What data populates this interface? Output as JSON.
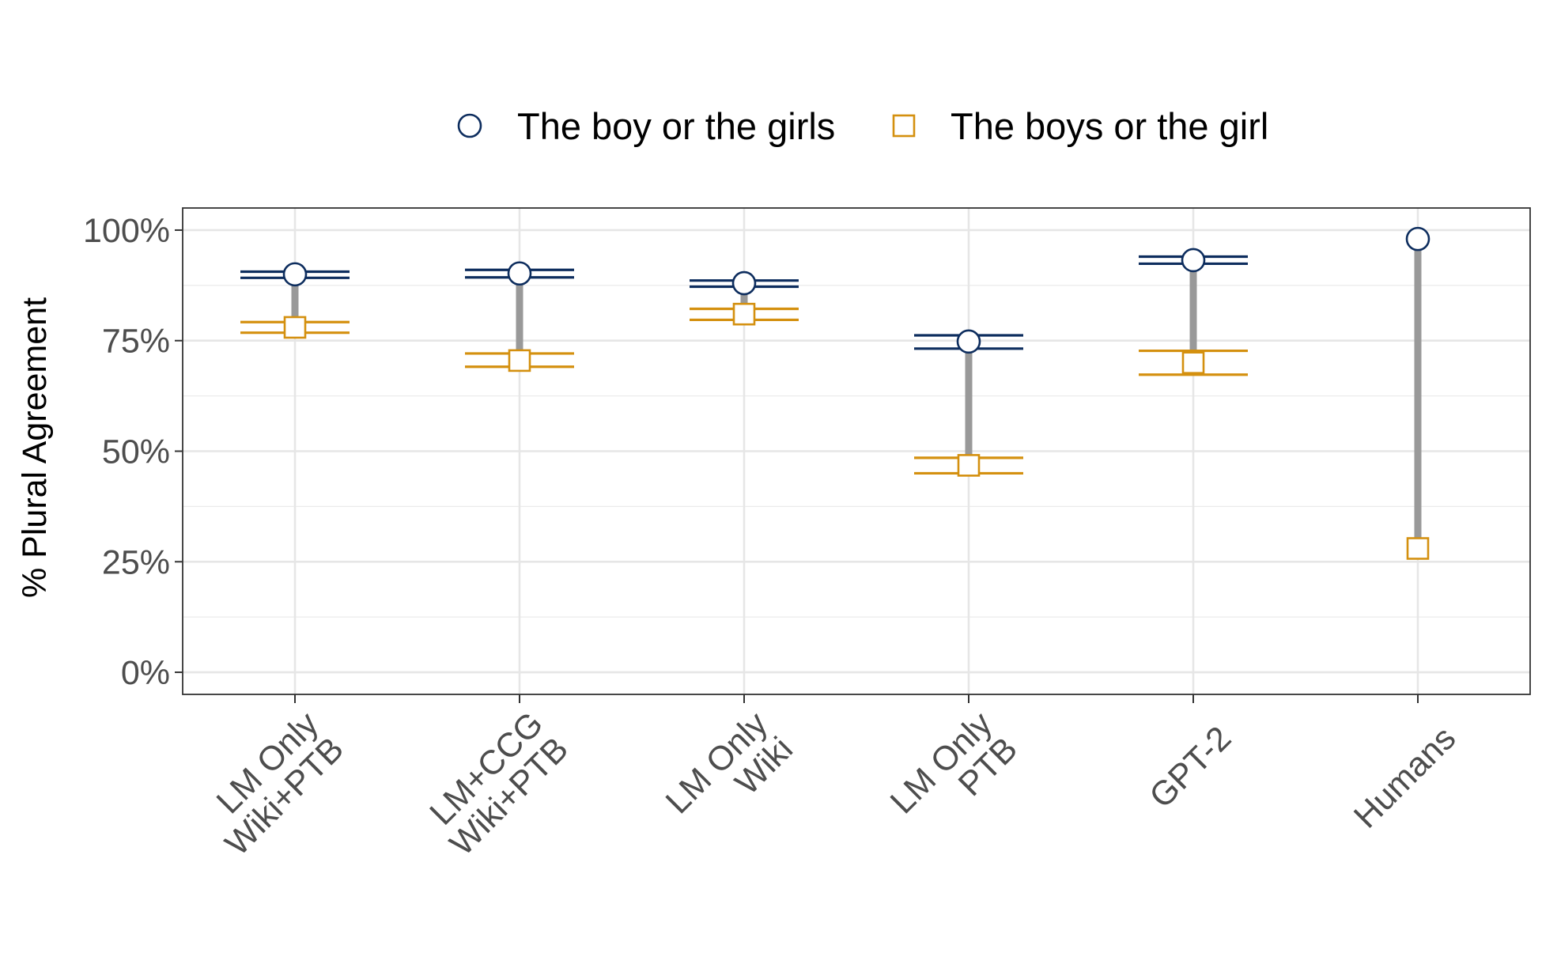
{
  "chart_data": {
    "type": "dumbbell",
    "ylabel": "% Plural Agreement",
    "xlabel": "",
    "ylim": [
      -5,
      105
    ],
    "y_ticks": [
      0,
      25,
      50,
      75,
      100
    ],
    "y_tick_labels": [
      "0%",
      "25%",
      "50%",
      "75%",
      "100%"
    ],
    "y_minor_ticks": [
      12.5,
      37.5,
      62.5,
      87.5
    ],
    "grid": true,
    "legend_position": "top",
    "categories": [
      {
        "label_lines": [
          "LM Only",
          "Wiki+PTB"
        ]
      },
      {
        "label_lines": [
          "LM+CCG",
          "Wiki+PTB"
        ]
      },
      {
        "label_lines": [
          "LM Only",
          "Wiki"
        ]
      },
      {
        "label_lines": [
          "LM Only",
          "PTB"
        ]
      },
      {
        "label_lines": [
          "GPT-2"
        ]
      },
      {
        "label_lines": [
          "Humans"
        ]
      }
    ],
    "series": [
      {
        "name": "The boy or the girls",
        "marker": "circle",
        "color": "#0d2d5e",
        "values": [
          90,
          90.2,
          88,
          74.8,
          93.2,
          98
        ],
        "error_low": [
          89.2,
          89.3,
          87.2,
          73.2,
          92.4,
          null
        ],
        "error_high": [
          90.6,
          91,
          88.6,
          76.2,
          94,
          null
        ]
      },
      {
        "name": "The boys or the girl",
        "marker": "square",
        "color": "#d4900f",
        "values": [
          78,
          70.5,
          81,
          46.8,
          70,
          28
        ],
        "error_low": [
          76.8,
          69.1,
          79.7,
          45,
          67.3,
          null
        ],
        "error_high": [
          79.2,
          72.1,
          82.2,
          48.5,
          72.7,
          null
        ]
      }
    ],
    "connector_color": "#999999"
  }
}
